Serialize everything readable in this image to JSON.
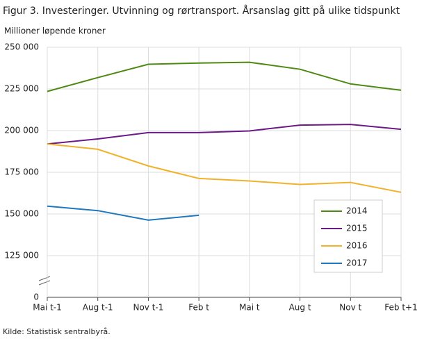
{
  "chart_data": {
    "type": "line",
    "title": "Figur 3. Investeringer. Utvinning og rørtransport. Årsanslag gitt på ulike tidspunkt",
    "y_axis_label": "Millioner  løpende  kroner",
    "source": "Kilde: Statistisk sentralbyrå.",
    "categories": [
      "Mai t-1",
      "Aug t-1",
      "Nov t-1",
      "Feb t",
      "Mai t",
      "Aug t",
      "Nov t",
      "Feb t+1"
    ],
    "series": [
      {
        "name": "2014",
        "color": "#4e8a12",
        "values": [
          223500,
          231800,
          239800,
          240500,
          241000,
          236800,
          228000,
          224200
        ]
      },
      {
        "name": "2015",
        "color": "#6b1a86",
        "values": [
          192000,
          195000,
          198800,
          198800,
          199800,
          203300,
          203700,
          200800
        ]
      },
      {
        "name": "2016",
        "color": "#f1b12b",
        "values": [
          192000,
          188800,
          178800,
          171300,
          169800,
          167700,
          168900,
          163000
        ]
      },
      {
        "name": "2017",
        "color": "#1f78be",
        "values": [
          154700,
          152000,
          146300,
          149200,
          null,
          null,
          null,
          null
        ]
      }
    ],
    "ylim": [
      0,
      250000
    ],
    "y_break": [
      0,
      100000
    ],
    "yticks": [
      0,
      {
        "value": 125000,
        "label": "125 000"
      },
      {
        "value": 150000,
        "label": "150 000"
      },
      {
        "value": 175000,
        "label": "175 000"
      },
      {
        "value": 200000,
        "label": "200 000"
      },
      {
        "value": 225000,
        "label": "225 000"
      },
      {
        "value": 250000,
        "label": "250 000"
      }
    ],
    "grid": true,
    "legend": "lower right"
  }
}
